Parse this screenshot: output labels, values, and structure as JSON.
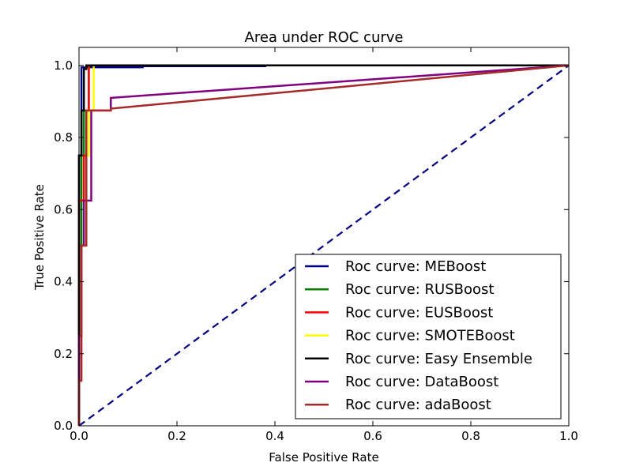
{
  "chart_data": {
    "type": "line",
    "title": "Area under ROC curve",
    "xlabel": "False Positive Rate",
    "ylabel": "True Positive Rate",
    "xlim": [
      0.0,
      1.0
    ],
    "ylim": [
      0.0,
      1.05
    ],
    "xticks": [
      0.0,
      0.2,
      0.4,
      0.6,
      0.8,
      1.0
    ],
    "xtick_labels": [
      "0.0",
      "0.2",
      "0.4",
      "0.6",
      "0.8",
      "1.0"
    ],
    "yticks": [
      0.0,
      0.2,
      0.4,
      0.6,
      0.8,
      1.0
    ],
    "ytick_labels": [
      "0.0",
      "0.2",
      "0.4",
      "0.6",
      "0.8",
      "1.0"
    ],
    "grid": false,
    "legend_position": "lower-right",
    "series": [
      {
        "name": "Roc curve: MEBoost",
        "color": "#000080",
        "points": [
          [
            0.0,
            0.0
          ],
          [
            0.0,
            0.75
          ],
          [
            0.005,
            0.75
          ],
          [
            0.005,
            0.995
          ],
          [
            0.13,
            0.995
          ],
          [
            0.13,
            0.998
          ],
          [
            0.38,
            0.998
          ],
          [
            0.38,
            1.0
          ],
          [
            1.0,
            1.0
          ]
        ]
      },
      {
        "name": "Roc curve: RUSBoost",
        "color": "#008000",
        "points": [
          [
            0.0,
            0.0
          ],
          [
            0.0,
            0.5
          ],
          [
            0.005,
            0.5
          ],
          [
            0.005,
            0.75
          ],
          [
            0.01,
            0.75
          ],
          [
            0.01,
            0.875
          ],
          [
            0.02,
            0.875
          ],
          [
            0.02,
            1.0
          ],
          [
            1.0,
            1.0
          ]
        ]
      },
      {
        "name": "Roc curve: EUSBoost",
        "color": "#ff0000",
        "points": [
          [
            0.0,
            0.0
          ],
          [
            0.0,
            0.625
          ],
          [
            0.01,
            0.625
          ],
          [
            0.01,
            0.75
          ],
          [
            0.015,
            0.75
          ],
          [
            0.015,
            0.875
          ],
          [
            0.02,
            0.875
          ],
          [
            0.02,
            1.0
          ],
          [
            1.0,
            1.0
          ]
        ]
      },
      {
        "name": "Roc curve: SMOTEBoost",
        "color": "#ffff00",
        "points": [
          [
            0.0,
            0.0
          ],
          [
            0.0,
            0.25
          ],
          [
            0.005,
            0.25
          ],
          [
            0.005,
            0.5
          ],
          [
            0.015,
            0.5
          ],
          [
            0.015,
            0.75
          ],
          [
            0.02,
            0.75
          ],
          [
            0.02,
            0.875
          ],
          [
            0.03,
            0.875
          ],
          [
            0.03,
            1.0
          ],
          [
            1.0,
            1.0
          ]
        ]
      },
      {
        "name": "Roc curve: Easy Ensemble",
        "color": "#000000",
        "points": [
          [
            0.0,
            0.0
          ],
          [
            0.0,
            0.75
          ],
          [
            0.005,
            0.75
          ],
          [
            0.005,
            0.875
          ],
          [
            0.01,
            0.875
          ],
          [
            0.01,
            0.99
          ],
          [
            0.015,
            0.99
          ],
          [
            0.015,
            1.0
          ],
          [
            1.0,
            1.0
          ]
        ]
      },
      {
        "name": "Roc curve: DataBoost",
        "color": "#800080",
        "points": [
          [
            0.0,
            0.0
          ],
          [
            0.0,
            0.25
          ],
          [
            0.005,
            0.25
          ],
          [
            0.005,
            0.5
          ],
          [
            0.01,
            0.5
          ],
          [
            0.01,
            0.625
          ],
          [
            0.025,
            0.625
          ],
          [
            0.025,
            0.875
          ],
          [
            0.065,
            0.875
          ],
          [
            0.065,
            0.91
          ],
          [
            1.0,
            1.0
          ]
        ]
      },
      {
        "name": "Roc curve: adaBoost",
        "color": "#a52a2a",
        "points": [
          [
            0.0,
            0.0
          ],
          [
            0.0,
            0.125
          ],
          [
            0.005,
            0.125
          ],
          [
            0.005,
            0.5
          ],
          [
            0.015,
            0.5
          ],
          [
            0.015,
            0.875
          ],
          [
            0.065,
            0.875
          ],
          [
            0.065,
            0.88
          ],
          [
            1.0,
            1.0
          ]
        ]
      }
    ],
    "reference_line": {
      "name": "chance diagonal",
      "color": "#000080",
      "style": "dashed",
      "points": [
        [
          0.0,
          0.0
        ],
        [
          1.0,
          1.0
        ]
      ]
    }
  }
}
